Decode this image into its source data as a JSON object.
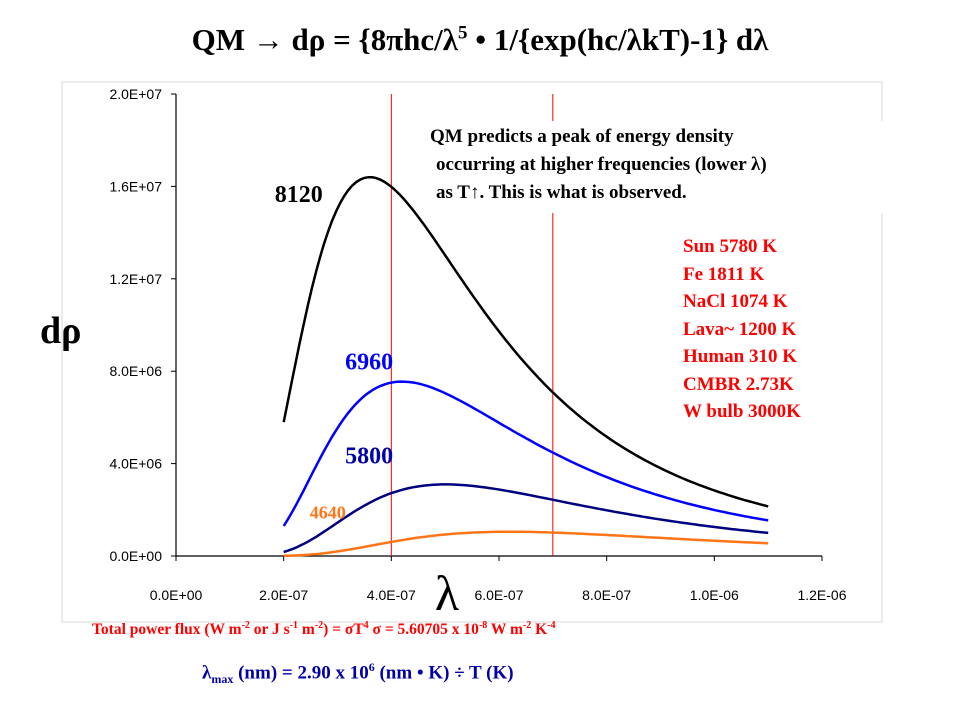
{
  "title": {
    "prefix": "QM",
    "arrow": "→",
    "formula_a": " dρ = {8πhc/λ",
    "exp": "5",
    "formula_b": " • 1/{exp(hc/λkT)-1} dλ"
  },
  "note": {
    "line1": "QM predicts a peak of energy density",
    "line2": "occurring at higher frequencies (lower λ)",
    "line3": "as T↑. This is what is observed."
  },
  "temperatures": [
    "Sun 5780 K",
    "Fe 1811 K",
    "NaCl 1074 K",
    "Lava~ 1200 K",
    "Human 310 K",
    "CMBR 2.73K",
    "W bulb 3000K"
  ],
  "flux": {
    "a": "Total power flux (W m",
    "e1": "-2",
    "b": " or J s",
    "e2": "-1",
    "c": " m",
    "e3": "-2",
    "d": ") = σT",
    "e4": "4",
    "e": " σ = 5.60705 x 10",
    "e5": "-8",
    "f": " W m",
    "e6": "-2",
    "g": " K",
    "e7": "-4"
  },
  "wien": {
    "lam": "λ",
    "sub": "max",
    "a": " (nm) = 2.90 x 10",
    "exp": "6",
    "b": " (nm • K) ÷ T (K)"
  },
  "chart_data": {
    "type": "line",
    "ylabel": "dρ",
    "xlabel": "λ",
    "xlim": [
      0,
      1.2e-06
    ],
    "ylim": [
      0,
      20000000.0
    ],
    "x_ticks": [
      0,
      2e-07,
      4e-07,
      6e-07,
      8e-07,
      1e-06,
      1.2e-06
    ],
    "x_tick_labels": [
      "0.0E+00",
      "2.0E-07",
      "4.0E-07",
      "6.0E-07",
      "8.0E-07",
      "1.0E-06",
      "1.2E-06"
    ],
    "y_ticks": [
      0,
      4000000.0,
      8000000.0,
      12000000.0,
      16000000.0,
      20000000.0
    ],
    "y_tick_labels": [
      "0.0E+00",
      "4.0E+06",
      "8.0E+06",
      "1.2E+07",
      "1.6E+07",
      "2.0E+07"
    ],
    "x_domain": [
      2e-07,
      1.1e-06
    ],
    "series": [
      {
        "name": "8120",
        "color": "#000000",
        "peak_x": 3.6e-07,
        "peak_y": 16400000.0
      },
      {
        "name": "6960",
        "color": "#0000ff",
        "peak_x": 4.2e-07,
        "peak_y": 7550000.0
      },
      {
        "name": "5800",
        "color": "#000080",
        "peak_x": 5e-07,
        "peak_y": 3100000.0
      },
      {
        "name": "4640",
        "color": "#ff7518",
        "peak_x": 6.2e-07,
        "peak_y": 1050000.0
      }
    ],
    "vertical_lines": [
      {
        "x": 4e-07,
        "color": "#ff0000"
      },
      {
        "x": 7e-07,
        "color": "#ff0000"
      }
    ],
    "grid": false
  }
}
